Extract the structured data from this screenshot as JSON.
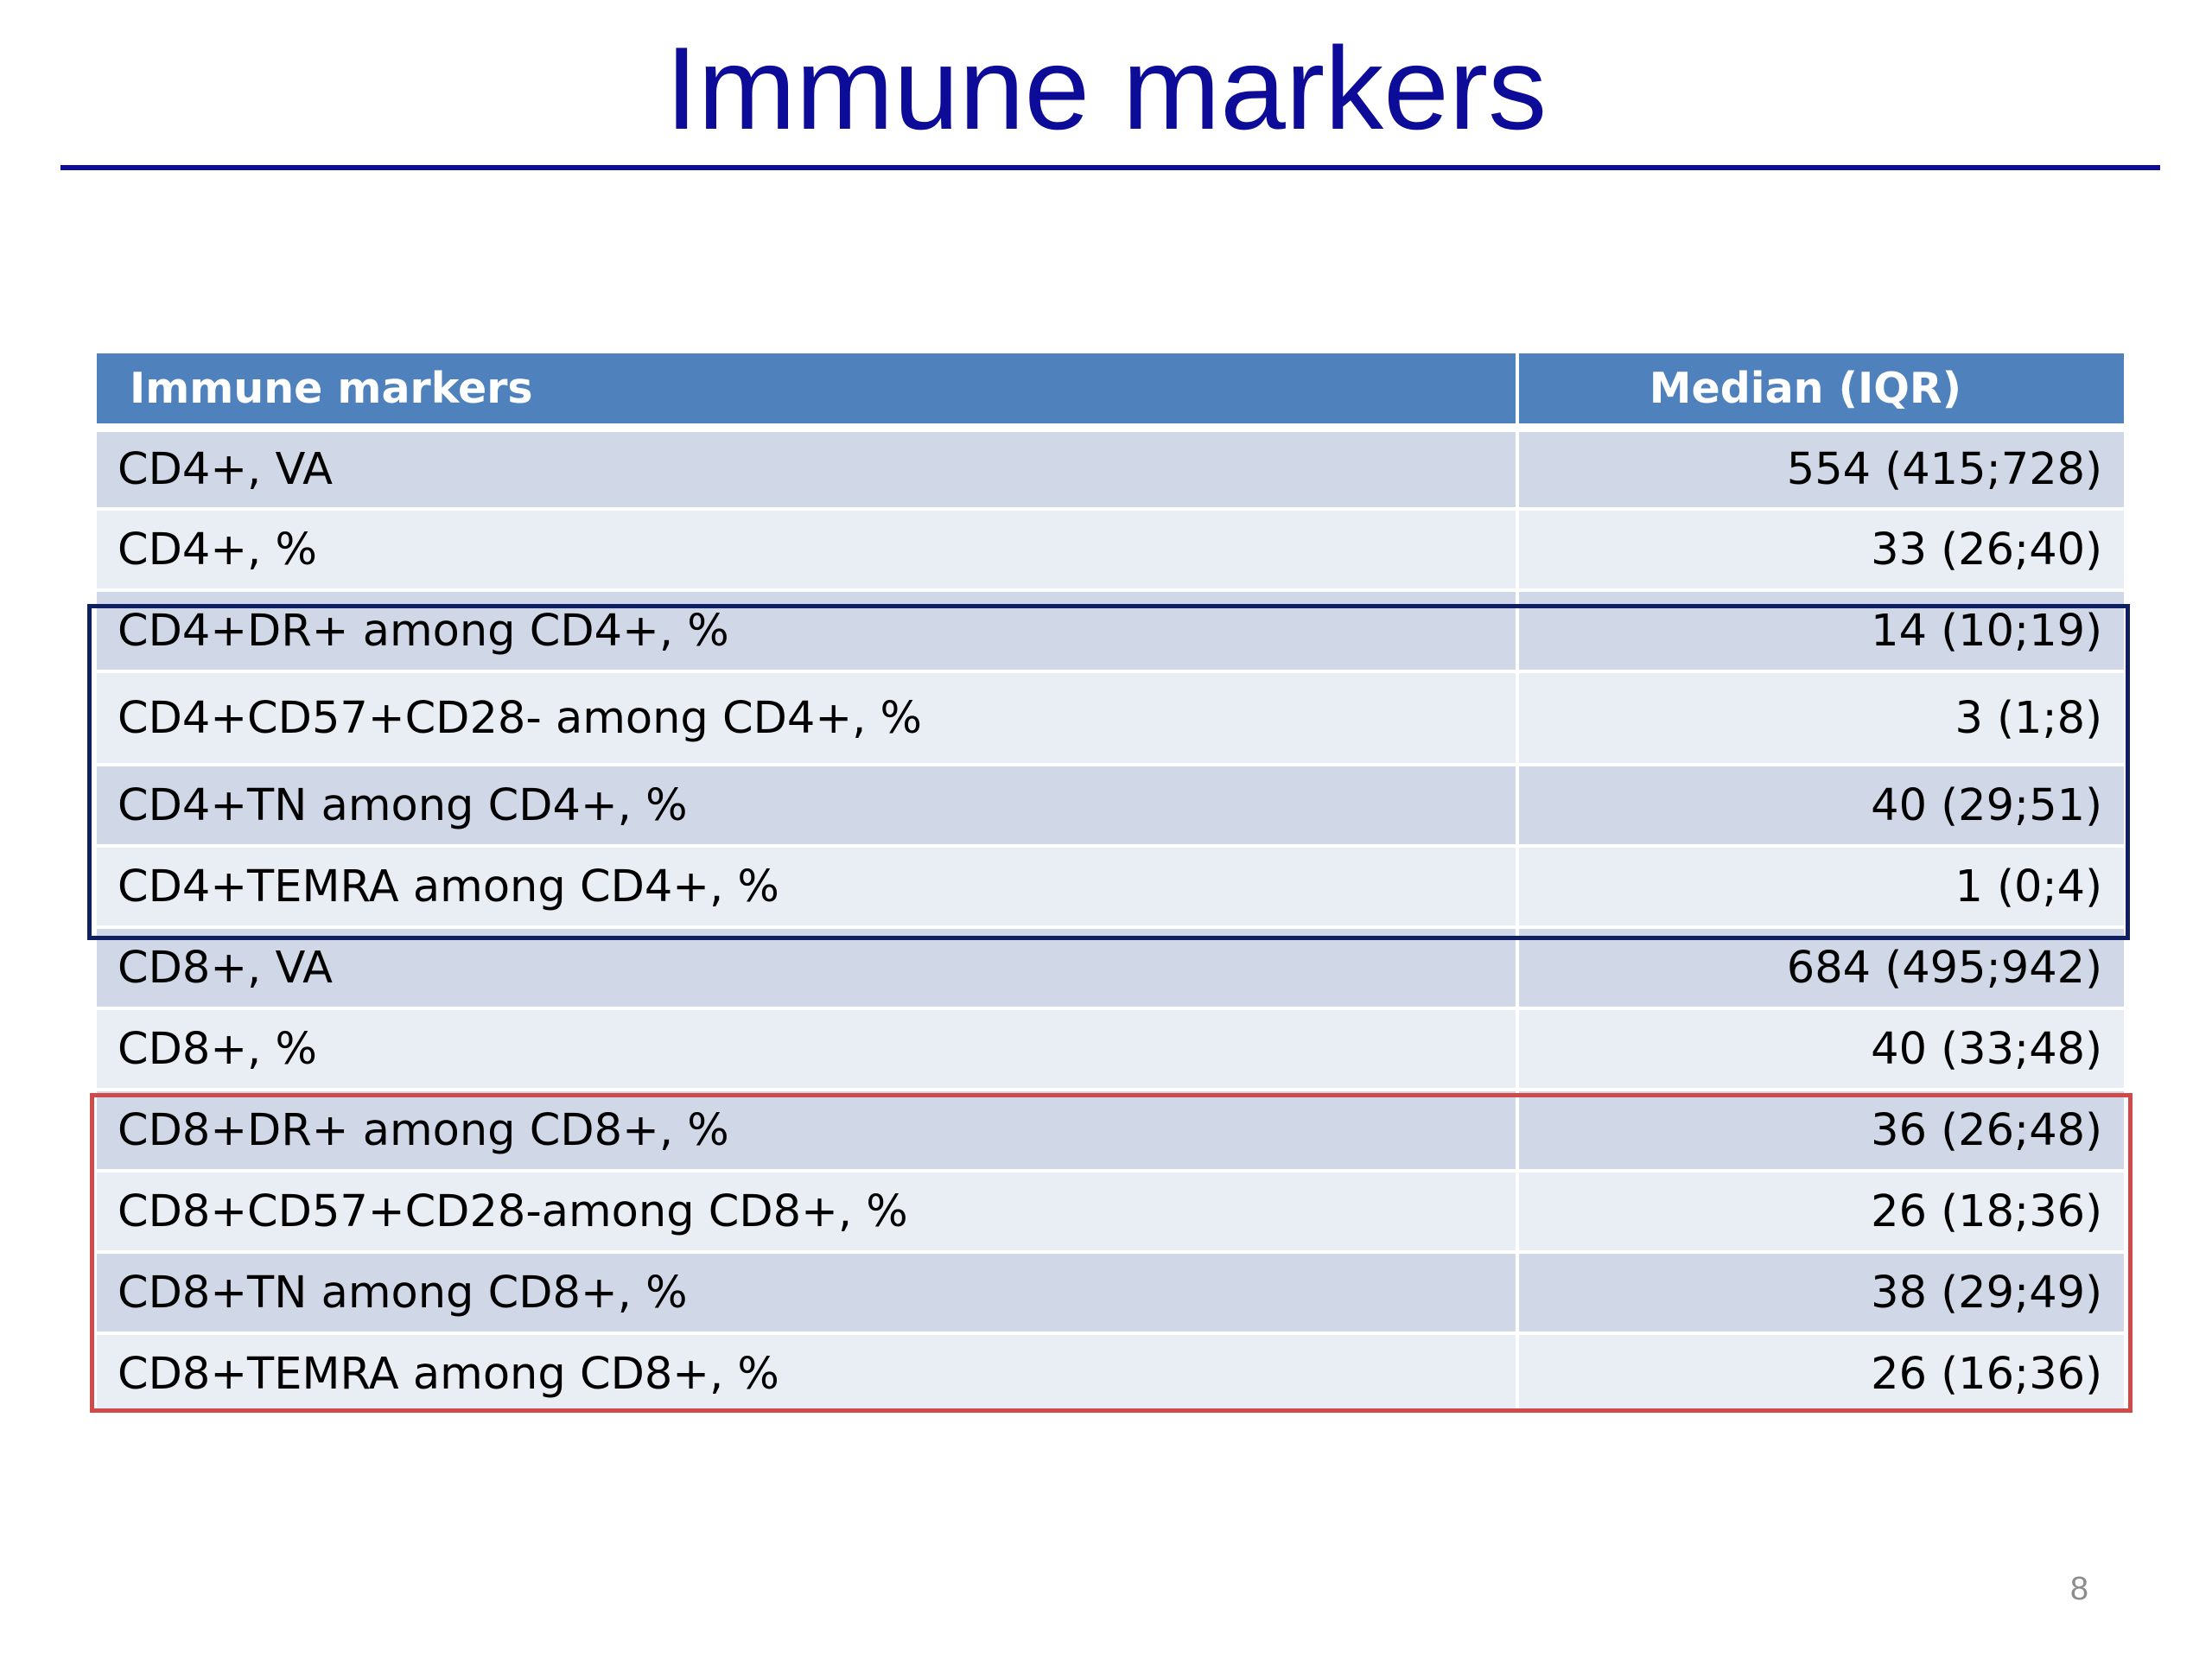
{
  "slide": {
    "title": "Immune markers",
    "page_number": "8"
  },
  "colors": {
    "title": "#0c0c99",
    "header_bg": "#4f81bd",
    "row_dark": "#d0d8e8",
    "row_light": "#e9edf4",
    "cd4_highlight": "#0e1f63",
    "cd8_highlight": "#d04a4a"
  },
  "table": {
    "headers": [
      "Immune markers",
      "Median (IQR)"
    ],
    "rows": [
      {
        "marker": "CD4+, VA",
        "value": "554 (415;728)"
      },
      {
        "marker": "CD4+, %",
        "value": "33 (26;40)"
      },
      {
        "marker": "CD4+DR+ among CD4+, %",
        "value": "14 (10;19)"
      },
      {
        "marker": "CD4+CD57+CD28- among CD4+, %",
        "value": "3 (1;8)"
      },
      {
        "marker": "CD4+TN among CD4+, %",
        "value": "40 (29;51)"
      },
      {
        "marker": "CD4+TEMRA among CD4+, %",
        "value": "1 (0;4)"
      },
      {
        "marker": "CD8+, VA",
        "value": "684 (495;942)"
      },
      {
        "marker": "CD8+, %",
        "value": "40 (33;48)"
      },
      {
        "marker": "CD8+DR+ among CD8+, %",
        "value": "36 (26;48)"
      },
      {
        "marker": "CD8+CD57+CD28-among CD8+, %",
        "value": "26 (18;36)"
      },
      {
        "marker": "CD8+TN among CD8+, %",
        "value": "38 (29;49)"
      },
      {
        "marker": "CD8+TEMRA among CD8+, %",
        "value": "26 (16;36)"
      }
    ]
  }
}
